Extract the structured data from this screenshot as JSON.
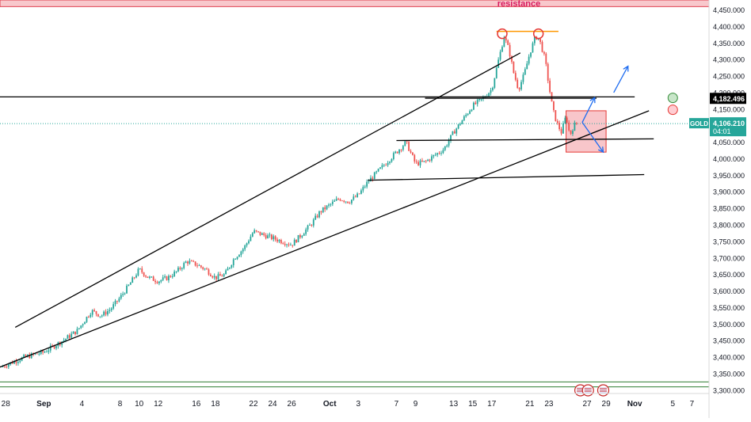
{
  "chart_data": {
    "type": "candlestick",
    "symbol": "GOLD",
    "last_price": "4,106.210",
    "countdown": "04:01",
    "level_label": "4,182.496",
    "resistance_label": "resistance",
    "colors": {
      "up": "#26a69a",
      "down": "#ef5350",
      "trendline": "#000000",
      "resistance_fill": "#f8c8cc",
      "resistance_border": "#e04050",
      "resistance_text": "#d81b60",
      "support_zone": "#2e7d32",
      "box_fill": "#f6b3b8",
      "box_border": "#e53935",
      "top_line": "#ff9800",
      "arrow": "#1e6cf0",
      "price_tag": "#26a69a",
      "level_tag": "#000000"
    },
    "y_axis": {
      "min": 3290,
      "max": 4480,
      "ticks": [
        "4,450.000",
        "4,400.000",
        "4,350.000",
        "4,300.000",
        "4,250.000",
        "4,200.000",
        "4,150.000",
        "4,050.000",
        "4,000.000",
        "3,950.000",
        "3,900.000",
        "3,850.000",
        "3,800.000",
        "3,750.000",
        "3,700.000",
        "3,650.000",
        "3,600.000",
        "3,550.000",
        "3,500.000",
        "3,450.000",
        "3,400.000",
        "3,350.000",
        "3,300.000"
      ],
      "tick_values": [
        4450,
        4400,
        4350,
        4300,
        4250,
        4200,
        4150,
        4050,
        4000,
        3950,
        3900,
        3850,
        3800,
        3750,
        3700,
        3650,
        3600,
        3550,
        3500,
        3450,
        3400,
        3350,
        3300
      ]
    },
    "x_axis": {
      "labels": [
        "28",
        "Sep",
        "4",
        "8",
        "10",
        "12",
        "16",
        "18",
        "22",
        "24",
        "26",
        "Oct",
        "3",
        "7",
        "9",
        "13",
        "15",
        "17",
        "21",
        "23",
        "27",
        "29",
        "Nov",
        "5",
        "7"
      ],
      "label_day": [
        -4,
        0,
        4,
        8,
        10,
        12,
        16,
        18,
        22,
        24,
        26,
        30,
        33,
        37,
        39,
        43,
        45,
        47,
        51,
        53,
        57,
        59,
        62,
        66,
        68
      ]
    },
    "price_path": [
      [
        -4.5,
        3370
      ],
      [
        -2,
        3400
      ],
      [
        0,
        3415
      ],
      [
        2,
        3450
      ],
      [
        3.5,
        3480
      ],
      [
        5,
        3540
      ],
      [
        6,
        3525
      ],
      [
        7,
        3545
      ],
      [
        8,
        3580
      ],
      [
        9,
        3620
      ],
      [
        10,
        3665
      ],
      [
        11,
        3640
      ],
      [
        12,
        3630
      ],
      [
        13,
        3640
      ],
      [
        14,
        3660
      ],
      [
        15,
        3690
      ],
      [
        16,
        3680
      ],
      [
        17,
        3665
      ],
      [
        18,
        3640
      ],
      [
        19,
        3650
      ],
      [
        20,
        3700
      ],
      [
        21,
        3730
      ],
      [
        22,
        3780
      ],
      [
        23,
        3770
      ],
      [
        24,
        3760
      ],
      [
        25,
        3750
      ],
      [
        26,
        3740
      ],
      [
        27,
        3770
      ],
      [
        28,
        3800
      ],
      [
        29,
        3840
      ],
      [
        30,
        3860
      ],
      [
        31,
        3880
      ],
      [
        32,
        3870
      ],
      [
        33,
        3890
      ],
      [
        34,
        3930
      ],
      [
        35,
        3960
      ],
      [
        36,
        3990
      ],
      [
        37,
        4020
      ],
      [
        38,
        4050
      ],
      [
        39,
        3985
      ],
      [
        40,
        3990
      ],
      [
        41,
        4010
      ],
      [
        42,
        4030
      ],
      [
        43,
        4080
      ],
      [
        44,
        4120
      ],
      [
        45,
        4160
      ],
      [
        46,
        4180
      ],
      [
        47,
        4210
      ],
      [
        47.6,
        4285
      ],
      [
        48.3,
        4370
      ],
      [
        48.8,
        4330
      ],
      [
        49.3,
        4260
      ],
      [
        49.8,
        4210
      ],
      [
        50.4,
        4255
      ],
      [
        51,
        4320
      ],
      [
        51.6,
        4370
      ],
      [
        52,
        4360
      ],
      [
        52.6,
        4300
      ],
      [
        53,
        4220
      ],
      [
        53.4,
        4150
      ],
      [
        53.8,
        4110
      ],
      [
        54.3,
        4080
      ],
      [
        54.8,
        4130
      ],
      [
        55.2,
        4070
      ],
      [
        55.6,
        4100
      ],
      [
        56,
        4110
      ]
    ],
    "trendlines": [
      {
        "points": [
          [
            -3,
            3490
          ],
          [
            50,
            4320
          ]
        ]
      },
      {
        "points": [
          [
            -4.6,
            3370
          ],
          [
            63.5,
            4145
          ]
        ]
      },
      {
        "points": [
          [
            -4.6,
            4187
          ],
          [
            62,
            4187
          ]
        ]
      },
      {
        "points": [
          [
            40,
            4183
          ],
          [
            58,
            4183
          ]
        ]
      },
      {
        "points": [
          [
            37,
            4055
          ],
          [
            64,
            4060
          ]
        ]
      },
      {
        "points": [
          [
            34,
            3935
          ],
          [
            63,
            3952
          ]
        ]
      }
    ],
    "resistance_zone": [
      4460,
      4480
    ],
    "support_zone": [
      3310,
      3325
    ],
    "double_top": {
      "line": [
        [
          47.5,
          4385
        ],
        [
          54,
          4385
        ]
      ],
      "markers": [
        [
          48.1,
          4378
        ],
        [
          51.9,
          4378
        ]
      ]
    },
    "consolidation_box": {
      "x": [
        54.8,
        59
      ],
      "y": [
        4020,
        4145
      ]
    },
    "arrows": [
      {
        "from": [
          56.5,
          4110
        ],
        "to": [
          57.8,
          4185
        ]
      },
      {
        "from": [
          56.5,
          4110
        ],
        "to": [
          58.7,
          4020
        ]
      },
      {
        "from": [
          59.8,
          4200
        ],
        "to": [
          61.3,
          4280
        ]
      }
    ],
    "circles": [
      {
        "day": 66,
        "value": 4184,
        "fill": "#c8e6c9",
        "stroke": "#388e3c"
      },
      {
        "day": 66,
        "value": 4148,
        "fill": "#ffcdd2",
        "stroke": "#e53935"
      }
    ],
    "event_markers": [
      56.3,
      57.1,
      58.7
    ]
  }
}
